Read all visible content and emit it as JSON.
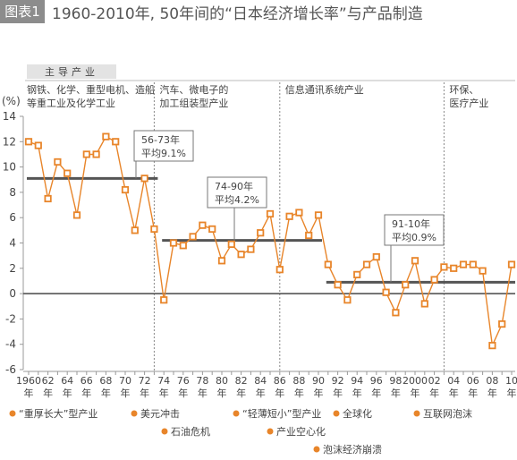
{
  "figure": {
    "label": "图表1",
    "title": "1960-2010年, 50年间的“日本经济增长率”与产品制造"
  },
  "colors": {
    "accent": "#e8852a",
    "avg_line": "#555555",
    "grid": "#dddddd",
    "text": "#444444",
    "header_bg": "#e3e3e3"
  },
  "chart_data": {
    "type": "line",
    "title": "",
    "xlabel": "",
    "ylabel": "(%)",
    "xlim": [
      1960,
      2010
    ],
    "ylim": [
      -6,
      14
    ],
    "yticks": [
      14,
      12,
      10,
      8,
      6,
      4,
      2,
      0,
      -2,
      -4,
      -6
    ],
    "xticks": [
      {
        "value": 1960,
        "label": "1960"
      },
      {
        "value": 1962,
        "label": "62"
      },
      {
        "value": 1964,
        "label": "64"
      },
      {
        "value": 1966,
        "label": "66"
      },
      {
        "value": 1968,
        "label": "68"
      },
      {
        "value": 1970,
        "label": "70"
      },
      {
        "value": 1972,
        "label": "72"
      },
      {
        "value": 1974,
        "label": "74"
      },
      {
        "value": 1976,
        "label": "76"
      },
      {
        "value": 1978,
        "label": "78"
      },
      {
        "value": 1980,
        "label": "80"
      },
      {
        "value": 1982,
        "label": "82"
      },
      {
        "value": 1984,
        "label": "84"
      },
      {
        "value": 1986,
        "label": "86"
      },
      {
        "value": 1988,
        "label": "88"
      },
      {
        "value": 1990,
        "label": "90"
      },
      {
        "value": 1992,
        "label": "92"
      },
      {
        "value": 1994,
        "label": "94"
      },
      {
        "value": 1996,
        "label": "96"
      },
      {
        "value": 1998,
        "label": "98"
      },
      {
        "value": 2000,
        "label": "2000"
      },
      {
        "value": 2002,
        "label": "02"
      },
      {
        "value": 2004,
        "label": "04"
      },
      {
        "value": 2006,
        "label": "06"
      },
      {
        "value": 2008,
        "label": "08"
      },
      {
        "value": 2010,
        "label": "10"
      }
    ],
    "xtick_unit": "年",
    "grid": false,
    "series": [
      {
        "x": [
          1960,
          1961,
          1962,
          1963,
          1964,
          1965,
          1966,
          1967,
          1968,
          1969,
          1970,
          1971,
          1972,
          1973,
          1974,
          1975,
          1976,
          1977,
          1978,
          1979,
          1980,
          1981,
          1982,
          1983,
          1984,
          1985,
          1986,
          1987,
          1988,
          1989,
          1990,
          1991,
          1992,
          1993,
          1994,
          1995,
          1996,
          1997,
          1998,
          1999,
          2000,
          2001,
          2002,
          2003,
          2004,
          2005,
          2006,
          2007,
          2008,
          2009,
          2010
        ],
        "values": [
          12.0,
          11.7,
          7.5,
          10.4,
          9.5,
          6.2,
          11.0,
          11.0,
          12.4,
          12.0,
          8.2,
          5.0,
          9.1,
          5.1,
          -0.5,
          4.0,
          3.8,
          4.5,
          5.4,
          5.1,
          2.6,
          3.9,
          3.1,
          3.5,
          4.8,
          6.3,
          1.9,
          6.1,
          6.4,
          4.6,
          6.2,
          2.3,
          0.7,
          -0.5,
          1.5,
          2.3,
          2.9,
          0.1,
          -1.5,
          0.7,
          2.6,
          -0.8,
          1.1,
          2.1,
          2.0,
          2.3,
          2.3,
          1.8,
          -4.1,
          -2.4,
          2.3
        ],
        "marker": "square-hollow",
        "color": "#e8852a"
      }
    ],
    "period_averages": [
      {
        "start": 1960,
        "end": 1973,
        "value": 9.1,
        "label_top": "56-73年",
        "label_bottom": "平均9.1%"
      },
      {
        "start": 1974,
        "end": 1990,
        "value": 4.2,
        "label_top": "74-90年",
        "label_bottom": "平均4.2%"
      },
      {
        "start": 1991,
        "end": 2010,
        "value": 0.9,
        "label_top": "91-10年",
        "label_bottom": "平均0.9%"
      }
    ],
    "header": {
      "title": "主导产业",
      "segments": [
        {
          "start": 1960,
          "end": 1973,
          "lines": [
            "钢铁、化学、重型电机、造船",
            "等重工业及化学工业"
          ]
        },
        {
          "start": 1973,
          "end": 1986,
          "lines": [
            "汽车、微电子的",
            "加工组装型产业"
          ]
        },
        {
          "start": 1986,
          "end": 2003,
          "lines": [
            "信息通讯系统产业"
          ]
        },
        {
          "start": 2003,
          "end": 2010,
          "lines": [
            "环保、",
            "医疗产业"
          ]
        }
      ]
    },
    "annotations": [
      {
        "year": 1970,
        "label": "“重厚长大”型产业"
      },
      {
        "year": 1971,
        "label": "美元冲击"
      },
      {
        "year": 1980,
        "label": "“轻薄短小”型产业"
      },
      {
        "year": 1989,
        "label": "全球化"
      },
      {
        "year": 2000,
        "label": "互联网泡沫"
      },
      {
        "year": 1973,
        "label": "石油危机"
      },
      {
        "year": 1985,
        "label": "产业空心化"
      },
      {
        "year": 1991,
        "label": "泡沫经济崩溃"
      }
    ]
  }
}
